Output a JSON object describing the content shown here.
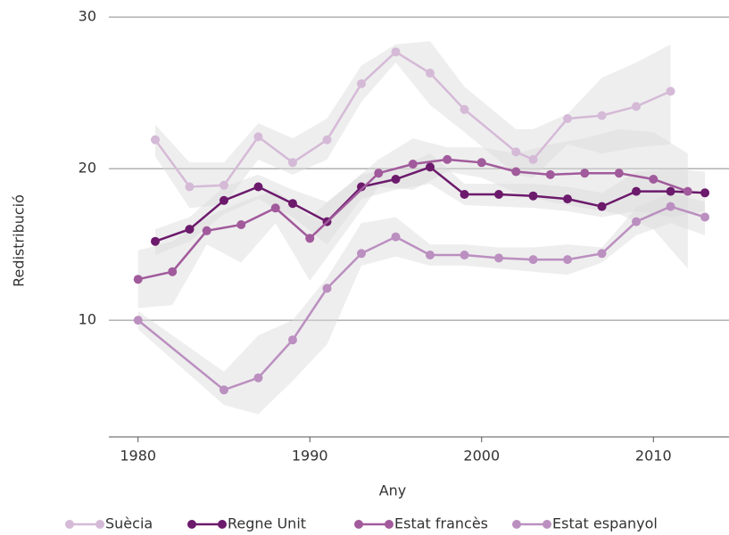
{
  "chart_data": {
    "type": "line",
    "xlabel": "Any",
    "ylabel": "Redistribució",
    "xlim": [
      1978.3,
      2014.4
    ],
    "xticks": [
      1980,
      1990,
      2000,
      2010
    ],
    "ylim": [
      2.3,
      30.3
    ],
    "yticks": [
      10,
      20,
      30
    ],
    "grid": true,
    "legend": "bottom",
    "series": [
      {
        "name": "Suècia",
        "color": "#d5bad7",
        "x": [
          1981,
          1983,
          1985,
          1987,
          1989,
          1991,
          1993,
          1995,
          1997,
          1999,
          2002,
          2003,
          2005,
          2007,
          2009,
          2011
        ],
        "values": [
          21.9,
          18.8,
          18.9,
          22.1,
          20.4,
          21.9,
          25.6,
          27.7,
          26.3,
          23.9,
          21.1,
          20.6,
          23.3,
          23.5,
          24.1,
          25.1
        ],
        "lower": [
          20.8,
          17.4,
          17.6,
          20.6,
          19.6,
          20.6,
          24.4,
          27.0,
          24.2,
          22.4,
          19.6,
          19.4,
          21.6,
          21.0,
          21.4,
          21.6
        ],
        "upper": [
          22.9,
          20.4,
          20.4,
          23.0,
          22.0,
          23.3,
          26.8,
          28.2,
          28.4,
          25.4,
          22.6,
          22.6,
          23.6,
          26.0,
          27.0,
          28.2
        ]
      },
      {
        "name": "Regne Unit",
        "color": "#6c1a6c",
        "x": [
          1981,
          1983,
          1985,
          1987,
          1989,
          1991,
          1993,
          1995,
          1997,
          1999,
          2001,
          2003,
          2005,
          2007,
          2009,
          2011,
          2013
        ],
        "values": [
          15.2,
          16.0,
          17.9,
          18.8,
          17.7,
          16.5,
          18.8,
          19.3,
          20.1,
          18.3,
          18.3,
          18.2,
          18.0,
          17.5,
          18.5,
          18.5,
          18.4
        ],
        "lower": [
          14.3,
          15.2,
          17.0,
          18.0,
          16.8,
          15.0,
          18.0,
          18.6,
          19.0,
          17.6,
          17.5,
          17.4,
          17.2,
          16.8,
          17.2,
          16.8,
          17.2
        ],
        "upper": [
          16.0,
          16.8,
          18.8,
          19.6,
          18.6,
          17.8,
          19.6,
          20.0,
          21.0,
          19.0,
          19.0,
          19.0,
          18.8,
          18.4,
          19.8,
          20.0,
          19.8
        ]
      },
      {
        "name": "Estat francès",
        "color": "#a15a9b",
        "x": [
          1980,
          1982,
          1984,
          1986,
          1988,
          1990,
          1994,
          1996,
          1998,
          2000,
          2002,
          2004,
          2006,
          2008,
          2010,
          2012
        ],
        "values": [
          12.7,
          13.2,
          15.9,
          16.3,
          17.4,
          15.4,
          19.7,
          20.3,
          20.6,
          20.4,
          19.8,
          19.6,
          19.7,
          19.7,
          19.3,
          18.5
        ],
        "lower": [
          10.8,
          11.0,
          15.0,
          13.8,
          16.4,
          12.6,
          18.8,
          18.6,
          19.8,
          19.4,
          18.4,
          17.8,
          17.4,
          17.0,
          16.0,
          13.4
        ],
        "upper": [
          14.6,
          15.2,
          16.8,
          17.8,
          18.6,
          16.8,
          20.6,
          22.0,
          21.4,
          21.4,
          21.0,
          21.6,
          22.0,
          22.6,
          22.4,
          21.0
        ]
      },
      {
        "name": "Estat espanyol",
        "color": "#bb8fc0",
        "x": [
          1980,
          1985,
          1987,
          1989,
          1991,
          1993,
          1995,
          1997,
          1999,
          2001,
          2003,
          2005,
          2007,
          2009,
          2011,
          2013
        ],
        "values": [
          10.0,
          5.4,
          6.2,
          8.7,
          12.1,
          14.4,
          15.5,
          14.3,
          14.3,
          14.1,
          14.0,
          14.0,
          14.4,
          16.5,
          17.5,
          16.8
        ],
        "lower": [
          9.4,
          4.4,
          3.8,
          6.0,
          8.4,
          13.6,
          14.2,
          13.6,
          13.6,
          13.4,
          13.2,
          13.0,
          13.8,
          15.6,
          16.4,
          15.6
        ],
        "upper": [
          10.6,
          6.6,
          9.0,
          10.0,
          12.8,
          16.4,
          16.8,
          15.0,
          15.0,
          14.8,
          14.8,
          15.0,
          14.8,
          17.4,
          18.4,
          17.8
        ]
      }
    ]
  }
}
